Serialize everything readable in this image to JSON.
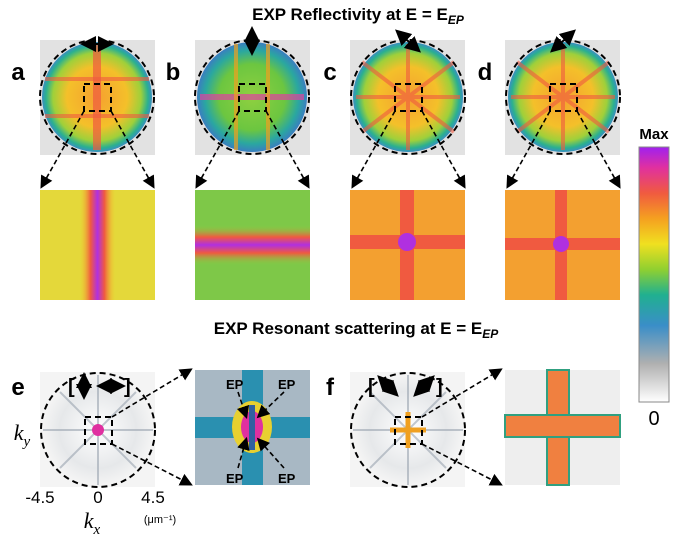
{
  "reflectivity": {
    "title": "EXP Reflectivity at E = E",
    "title_subscript": "EP",
    "panels": [
      "a",
      "b",
      "c",
      "d"
    ]
  },
  "scattering": {
    "title": "EXP Resonant scattering at E = E",
    "title_subscript": "EP",
    "panels": [
      "e",
      "f"
    ],
    "brackets": [
      "[",
      "]",
      "[",
      "]"
    ],
    "ep_labels": [
      "EP",
      "EP",
      "EP",
      "EP"
    ]
  },
  "axes": {
    "x_ticks": [
      "-4.5",
      "0",
      "4.5"
    ],
    "unit": "(μm⁻¹)",
    "x_label": "k",
    "x_sub": "x",
    "y_label": "k",
    "y_sub": "y"
  },
  "colorbar": {
    "max_label": "Max",
    "min_label": "0"
  }
}
